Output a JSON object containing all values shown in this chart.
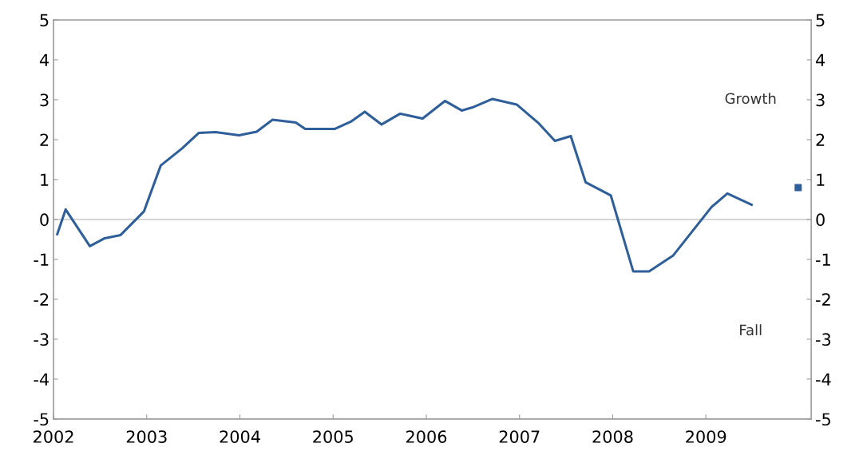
{
  "chart_data": {
    "type": "line",
    "series": [
      {
        "color": "#2f5f9a",
        "x": [
          2002.04,
          2002.13,
          2002.39,
          2002.55,
          2002.72,
          2002.97,
          2003.15,
          2003.38,
          2003.56,
          2003.74,
          2003.99,
          2004.18,
          2004.35,
          2004.6,
          2004.7,
          2005.02,
          2005.19,
          2005.34,
          2005.52,
          2005.72,
          2005.96,
          2006.2,
          2006.38,
          2006.51,
          2006.71,
          2006.97,
          2007.21,
          2007.38,
          2007.55,
          2007.71,
          2007.98,
          2008.22,
          2008.39,
          2008.65,
          2009.06,
          2009.23,
          2009.49
        ],
        "values": [
          -0.37,
          0.25,
          -0.67,
          -0.47,
          -0.39,
          0.2,
          1.35,
          1.78,
          2.17,
          2.19,
          2.11,
          2.2,
          2.5,
          2.43,
          2.27,
          2.27,
          2.45,
          2.7,
          2.38,
          2.65,
          2.53,
          2.97,
          2.73,
          2.82,
          3.02,
          2.88,
          2.4,
          1.97,
          2.09,
          0.93,
          0.6,
          -1.3,
          -1.3,
          -0.9,
          0.31,
          0.65,
          0.37
        ]
      },
      {
        "type": "scatter",
        "marker": "square",
        "color": "#2f5f9a",
        "x": [
          2009.99
        ],
        "values": [
          0.8
        ]
      }
    ],
    "xlim": [
      2002,
      2010.13
    ],
    "xticks": [
      2002,
      2003,
      2004,
      2005,
      2006,
      2007,
      2008,
      2009
    ],
    "ylim": [
      -5,
      5
    ],
    "yticks": [
      -5,
      -4,
      -3,
      -2,
      -1,
      0,
      1,
      2,
      3,
      4,
      5
    ],
    "y2lim": [
      -5,
      5
    ],
    "y2ticks": [
      -5,
      -4,
      -3,
      -2,
      -1,
      0,
      1,
      2,
      3,
      4,
      5
    ],
    "ref_lines": [
      {
        "axis": "y",
        "value": 0,
        "color": "#d0d0d0"
      }
    ],
    "annotations": [
      "Growth",
      "Fall"
    ],
    "grid": false,
    "legend": false
  }
}
